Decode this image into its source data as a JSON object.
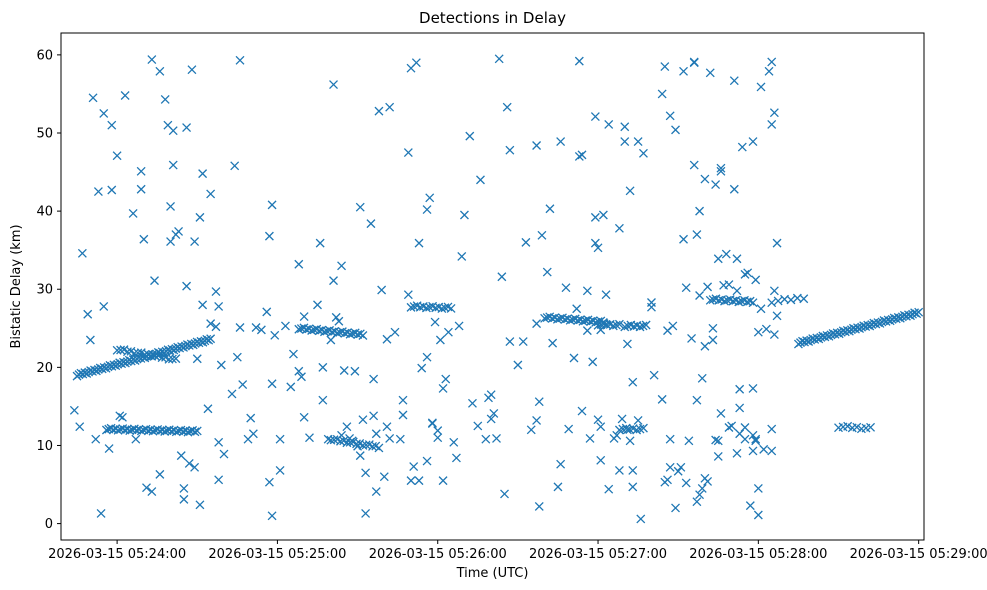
{
  "chart_data": {
    "type": "scatter",
    "title": "Detections in Delay",
    "xlabel": "Time (UTC)",
    "ylabel": "Bistatic Delay (km)",
    "marker": "x",
    "color": "#1f77b4",
    "x_unit": "seconds after 2026-03-15 05:24:00 UTC",
    "xlim": [
      -21,
      302
    ],
    "ylim": [
      -2.1,
      62.8
    ],
    "xticks": [
      {
        "value": 0,
        "label": "2026-03-15 05:24:00"
      },
      {
        "value": 60,
        "label": "2026-03-15 05:25:00"
      },
      {
        "value": 120,
        "label": "2026-03-15 05:26:00"
      },
      {
        "value": 180,
        "label": "2026-03-15 05:27:00"
      },
      {
        "value": 240,
        "label": "2026-03-15 05:28:00"
      },
      {
        "value": 300,
        "label": "2026-03-15 05:29:00"
      }
    ],
    "yticks": [
      {
        "value": 0,
        "label": "0"
      },
      {
        "value": 10,
        "label": "10"
      },
      {
        "value": 20,
        "label": "20"
      },
      {
        "value": 30,
        "label": "30"
      },
      {
        "value": 40,
        "label": "40"
      },
      {
        "value": 50,
        "label": "50"
      },
      {
        "value": 60,
        "label": "60"
      }
    ],
    "tracks": [
      {
        "x0": -15,
        "x1": 35,
        "y0": 19.0,
        "y1": 23.6,
        "n": 70
      },
      {
        "x0": 0,
        "x1": 22,
        "y0": 22.3,
        "y1": 21.0,
        "n": 18
      },
      {
        "x0": -4,
        "x1": 30,
        "y0": 12.1,
        "y1": 11.8,
        "n": 40
      },
      {
        "x0": 68,
        "x1": 92,
        "y0": 25.0,
        "y1": 24.2,
        "n": 26
      },
      {
        "x0": 80,
        "x1": 98,
        "y0": 10.8,
        "y1": 9.8,
        "n": 16
      },
      {
        "x0": 110,
        "x1": 125,
        "y0": 27.8,
        "y1": 27.6,
        "n": 14
      },
      {
        "x0": 160,
        "x1": 182,
        "y0": 26.4,
        "y1": 25.8,
        "n": 24
      },
      {
        "x0": 180,
        "x1": 188,
        "y0": 25.5,
        "y1": 25.4,
        "n": 8
      },
      {
        "x0": 190,
        "x1": 198,
        "y0": 25.3,
        "y1": 25.3,
        "n": 8
      },
      {
        "x0": 188,
        "x1": 197,
        "y0": 12.1,
        "y1": 12.1,
        "n": 8
      },
      {
        "x0": 222,
        "x1": 238,
        "y0": 28.7,
        "y1": 28.4,
        "n": 16
      },
      {
        "x0": 245,
        "x1": 257,
        "y0": 28.4,
        "y1": 28.9,
        "n": 6
      },
      {
        "x0": 255,
        "x1": 300,
        "y0": 23.1,
        "y1": 27.0,
        "n": 60
      },
      {
        "x0": 270,
        "x1": 282,
        "y0": 12.4,
        "y1": 12.2,
        "n": 8
      }
    ],
    "points": [
      [
        -16,
        14.5
      ],
      [
        -14,
        12.4
      ],
      [
        -13,
        34.6
      ],
      [
        -11,
        26.8
      ],
      [
        -10,
        23.5
      ],
      [
        -9,
        54.5
      ],
      [
        -8,
        10.8
      ],
      [
        -7,
        42.5
      ],
      [
        -6,
        1.3
      ],
      [
        -5,
        52.5
      ],
      [
        -5,
        27.8
      ],
      [
        -3,
        9.6
      ],
      [
        -2,
        42.7
      ],
      [
        -2,
        51
      ],
      [
        0,
        47.1
      ],
      [
        1,
        13.8
      ],
      [
        2,
        13.6
      ],
      [
        3,
        54.8
      ],
      [
        6,
        39.7
      ],
      [
        7,
        10.8
      ],
      [
        9,
        45.1
      ],
      [
        9,
        42.8
      ],
      [
        10,
        36.4
      ],
      [
        11,
        4.6
      ],
      [
        13,
        4.1
      ],
      [
        13,
        59.4
      ],
      [
        14,
        31.1
      ],
      [
        16,
        57.9
      ],
      [
        16,
        6.3
      ],
      [
        18,
        54.3
      ],
      [
        19,
        51
      ],
      [
        20,
        36.1
      ],
      [
        20,
        40.6
      ],
      [
        21,
        50.3
      ],
      [
        21,
        45.9
      ],
      [
        22,
        37.0
      ],
      [
        23,
        37.4
      ],
      [
        24,
        8.7
      ],
      [
        25,
        4.5
      ],
      [
        25,
        3.1
      ],
      [
        26,
        50.7
      ],
      [
        26,
        30.4
      ],
      [
        27,
        7.7
      ],
      [
        28,
        58.1
      ],
      [
        29,
        36.1
      ],
      [
        29,
        7.2
      ],
      [
        30,
        21.1
      ],
      [
        31,
        39.2
      ],
      [
        31,
        2.4
      ],
      [
        32,
        28
      ],
      [
        32,
        44.8
      ],
      [
        34,
        14.7
      ],
      [
        35,
        42.2
      ],
      [
        35,
        25.6
      ],
      [
        37,
        29.7
      ],
      [
        37,
        25.2
      ],
      [
        38,
        27.8
      ],
      [
        38,
        5.6
      ],
      [
        38,
        10.4
      ],
      [
        39,
        20.3
      ],
      [
        40,
        8.9
      ],
      [
        43,
        16.6
      ],
      [
        44,
        45.8
      ],
      [
        45,
        21.3
      ],
      [
        46,
        59.3
      ],
      [
        46,
        25.1
      ],
      [
        47,
        17.8
      ],
      [
        49,
        10.8
      ],
      [
        50,
        13.5
      ],
      [
        51,
        11.5
      ],
      [
        52,
        25.1
      ],
      [
        54,
        24.8
      ],
      [
        56,
        27.1
      ],
      [
        57,
        5.3
      ],
      [
        57,
        36.8
      ],
      [
        58,
        40.8
      ],
      [
        58,
        1.0
      ],
      [
        58,
        17.9
      ],
      [
        59,
        24.1
      ],
      [
        61,
        6.8
      ],
      [
        61,
        10.8
      ],
      [
        63,
        25.3
      ],
      [
        65,
        17.5
      ],
      [
        66,
        21.7
      ],
      [
        68,
        19.5
      ],
      [
        68,
        33.2
      ],
      [
        69,
        18.8
      ],
      [
        70,
        13.6
      ],
      [
        70,
        26.5
      ],
      [
        72,
        11.0
      ],
      [
        75,
        28.0
      ],
      [
        76,
        35.9
      ],
      [
        77,
        20.0
      ],
      [
        77,
        15.8
      ],
      [
        79,
        10.8
      ],
      [
        80,
        23.5
      ],
      [
        81,
        56.2
      ],
      [
        81,
        31.1
      ],
      [
        82,
        26.4
      ],
      [
        83,
        25.9
      ],
      [
        84,
        33.0
      ],
      [
        84,
        11.3
      ],
      [
        85,
        19.6
      ],
      [
        86,
        12.4
      ],
      [
        87,
        10.9
      ],
      [
        88,
        10.6
      ],
      [
        89,
        19.5
      ],
      [
        90,
        9.9
      ],
      [
        91,
        8.7
      ],
      [
        91,
        40.5
      ],
      [
        92,
        13.3
      ],
      [
        93,
        6.5
      ],
      [
        93,
        1.3
      ],
      [
        95,
        38.4
      ],
      [
        96,
        18.5
      ],
      [
        96,
        13.8
      ],
      [
        97,
        11.5
      ],
      [
        97,
        4.1
      ],
      [
        98,
        52.8
      ],
      [
        99,
        29.9
      ],
      [
        100,
        6.0
      ],
      [
        101,
        12.4
      ],
      [
        101,
        23.6
      ],
      [
        102,
        53.3
      ],
      [
        102,
        10.9
      ],
      [
        104,
        24.5
      ],
      [
        106,
        10.8
      ],
      [
        107,
        15.8
      ],
      [
        107,
        13.9
      ],
      [
        109,
        47.5
      ],
      [
        109,
        29.3
      ],
      [
        110,
        58.3
      ],
      [
        110,
        5.5
      ],
      [
        111,
        7.3
      ],
      [
        112,
        59.0
      ],
      [
        113,
        35.9
      ],
      [
        113,
        5.5
      ],
      [
        114,
        19.9
      ],
      [
        116,
        40.2
      ],
      [
        116,
        21.3
      ],
      [
        116,
        8.0
      ],
      [
        117,
        41.7
      ],
      [
        118,
        12.9
      ],
      [
        118,
        12.8
      ],
      [
        119,
        25.8
      ],
      [
        120,
        11.9
      ],
      [
        120,
        11.0
      ],
      [
        121,
        23.5
      ],
      [
        122,
        17.3
      ],
      [
        122,
        5.5
      ],
      [
        123,
        18.5
      ],
      [
        124,
        24.5
      ],
      [
        126,
        10.4
      ],
      [
        127,
        8.4
      ],
      [
        128,
        25.3
      ],
      [
        129,
        34.2
      ],
      [
        130,
        39.5
      ],
      [
        132,
        49.6
      ],
      [
        133,
        15.4
      ],
      [
        135,
        12.5
      ],
      [
        136,
        44.0
      ],
      [
        138,
        10.8
      ],
      [
        139,
        16.1
      ],
      [
        140,
        16.5
      ],
      [
        140,
        13.4
      ],
      [
        141,
        14.1
      ],
      [
        142,
        10.9
      ],
      [
        143,
        59.5
      ],
      [
        144,
        31.6
      ],
      [
        145,
        3.8
      ],
      [
        146,
        53.3
      ],
      [
        147,
        47.8
      ],
      [
        147,
        23.3
      ],
      [
        150,
        20.3
      ],
      [
        152,
        23.3
      ],
      [
        153,
        36.0
      ],
      [
        155,
        12.0
      ],
      [
        157,
        25.6
      ],
      [
        157,
        13.2
      ],
      [
        157,
        48.4
      ],
      [
        158,
        15.6
      ],
      [
        158,
        2.2
      ],
      [
        159,
        36.9
      ],
      [
        161,
        32.2
      ],
      [
        162,
        40.3
      ],
      [
        163,
        23.1
      ],
      [
        165,
        4.7
      ],
      [
        166,
        7.6
      ],
      [
        166,
        48.9
      ],
      [
        168,
        30.2
      ],
      [
        169,
        12.1
      ],
      [
        171,
        21.2
      ],
      [
        172,
        27.5
      ],
      [
        173,
        47.0
      ],
      [
        173,
        59.2
      ],
      [
        174,
        47.2
      ],
      [
        174,
        14.4
      ],
      [
        176,
        29.8
      ],
      [
        176,
        24.7
      ],
      [
        177,
        10.9
      ],
      [
        178,
        20.7
      ],
      [
        179,
        52.1
      ],
      [
        179,
        39.2
      ],
      [
        179,
        35.9
      ],
      [
        180,
        35.3
      ],
      [
        180,
        13.3
      ],
      [
        181,
        8.1
      ],
      [
        181,
        24.8
      ],
      [
        181,
        12.4
      ],
      [
        182,
        39.5
      ],
      [
        183,
        29.3
      ],
      [
        183,
        25.5
      ],
      [
        184,
        51.1
      ],
      [
        184,
        4.4
      ],
      [
        186,
        10.9
      ],
      [
        187,
        11.3
      ],
      [
        188,
        37.8
      ],
      [
        188,
        6.8
      ],
      [
        189,
        13.4
      ],
      [
        190,
        50.8
      ],
      [
        190,
        48.9
      ],
      [
        191,
        23.0
      ],
      [
        191,
        12.0
      ],
      [
        192,
        10.6
      ],
      [
        192,
        42.6
      ],
      [
        193,
        4.7
      ],
      [
        193,
        6.8
      ],
      [
        193,
        18.1
      ],
      [
        195,
        48.9
      ],
      [
        195,
        13.2
      ],
      [
        196,
        0.6
      ],
      [
        197,
        47.4
      ],
      [
        200,
        28.3
      ],
      [
        200,
        27.7
      ],
      [
        201,
        19.0
      ],
      [
        204,
        55.0
      ],
      [
        204,
        15.9
      ],
      [
        205,
        5.3
      ],
      [
        205,
        58.5
      ],
      [
        206,
        5.6
      ],
      [
        206,
        24.7
      ],
      [
        207,
        7.2
      ],
      [
        207,
        10.8
      ],
      [
        207,
        52.2
      ],
      [
        208,
        25.3
      ],
      [
        209,
        50.4
      ],
      [
        209,
        2.0
      ],
      [
        210,
        6.7
      ],
      [
        211,
        7.2
      ],
      [
        212,
        57.9
      ],
      [
        212,
        36.4
      ],
      [
        213,
        30.2
      ],
      [
        213,
        5.2
      ],
      [
        214,
        10.6
      ],
      [
        215,
        23.7
      ],
      [
        216,
        59.0
      ],
      [
        216,
        59.1
      ],
      [
        216,
        45.9
      ],
      [
        217,
        15.8
      ],
      [
        217,
        37.0
      ],
      [
        217,
        2.8
      ],
      [
        218,
        3.7
      ],
      [
        218,
        40.0
      ],
      [
        218,
        29.2
      ],
      [
        219,
        18.6
      ],
      [
        219,
        4.5
      ],
      [
        220,
        44.1
      ],
      [
        220,
        5.8
      ],
      [
        220,
        22.7
      ],
      [
        221,
        30.3
      ],
      [
        221,
        5.4
      ],
      [
        222,
        57.7
      ],
      [
        223,
        23.5
      ],
      [
        223,
        25.0
      ],
      [
        224,
        43.4
      ],
      [
        224,
        10.7
      ],
      [
        225,
        10.6
      ],
      [
        225,
        33.9
      ],
      [
        225,
        8.6
      ],
      [
        226,
        45.1
      ],
      [
        226,
        45.5
      ],
      [
        226,
        14.1
      ],
      [
        227,
        30.5
      ],
      [
        228,
        34.5
      ],
      [
        229,
        30.6
      ],
      [
        229,
        12.3
      ],
      [
        230,
        12.5
      ],
      [
        231,
        42.8
      ],
      [
        231,
        56.7
      ],
      [
        232,
        29.8
      ],
      [
        232,
        33.9
      ],
      [
        232,
        9.0
      ],
      [
        233,
        14.8
      ],
      [
        233,
        17.2
      ],
      [
        233,
        11.5
      ],
      [
        234,
        48.2
      ],
      [
        235,
        31.9
      ],
      [
        235,
        12.3
      ],
      [
        235,
        10.8
      ],
      [
        236,
        32.1
      ],
      [
        237,
        2.3
      ],
      [
        238,
        48.9
      ],
      [
        238,
        17.3
      ],
      [
        238,
        11.3
      ],
      [
        238,
        9.3
      ],
      [
        239,
        10.6
      ],
      [
        239,
        10.8
      ],
      [
        239,
        31.2
      ],
      [
        240,
        24.5
      ],
      [
        240,
        1.1
      ],
      [
        240,
        4.5
      ],
      [
        241,
        27.5
      ],
      [
        241,
        55.9
      ],
      [
        242,
        9.5
      ],
      [
        243,
        24.9
      ],
      [
        244,
        57.9
      ],
      [
        245,
        51.1
      ],
      [
        245,
        59.1
      ],
      [
        245,
        9.3
      ],
      [
        245,
        12.1
      ],
      [
        246,
        52.6
      ],
      [
        246,
        24.2
      ],
      [
        246,
        29.8
      ],
      [
        247,
        35.9
      ],
      [
        247,
        26.6
      ]
    ]
  }
}
